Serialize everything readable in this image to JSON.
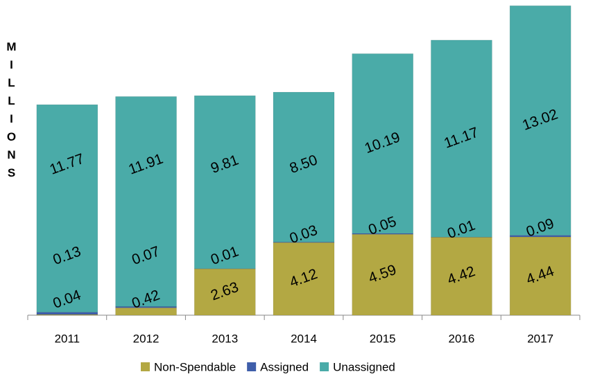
{
  "chart_data": {
    "type": "stacked_bar",
    "y_label": "MILLIONS",
    "categories": [
      "2011",
      "2012",
      "2013",
      "2014",
      "2015",
      "2016",
      "2017"
    ],
    "series": [
      {
        "name": "Non-Spendable",
        "color": "#b3a843",
        "values": [
          0.04,
          0.42,
          2.63,
          4.12,
          4.59,
          4.42,
          4.44
        ]
      },
      {
        "name": "Assigned",
        "color": "#3f5eaa",
        "values": [
          0.13,
          0.07,
          0.01,
          0.03,
          0.05,
          0.01,
          0.09
        ]
      },
      {
        "name": "Unassigned",
        "color": "#4aaba8",
        "values": [
          11.77,
          11.91,
          9.81,
          8.5,
          10.19,
          11.17,
          13.02
        ],
        "value_labels": [
          "11.77",
          "11.91",
          "9.81",
          "8.50",
          "10.19",
          "11.17",
          "13.02"
        ]
      }
    ],
    "ylim": [
      0,
      17.6
    ]
  }
}
